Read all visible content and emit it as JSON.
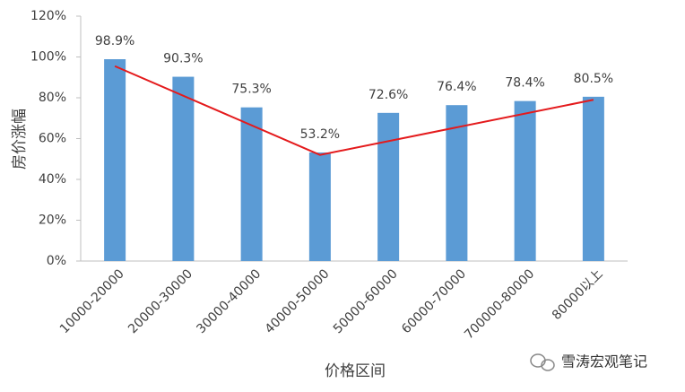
{
  "chart_data": {
    "type": "bar",
    "categories": [
      "10000-20000",
      "20000-30000",
      "30000-40000",
      "40000-50000",
      "50000-60000",
      "60000-70000",
      "700000-80000",
      "80000以上"
    ],
    "values": [
      98.9,
      90.3,
      75.3,
      53.2,
      72.6,
      76.4,
      78.4,
      80.5
    ],
    "value_labels": [
      "98.9%",
      "90.3%",
      "75.3%",
      "53.2%",
      "72.6%",
      "76.4%",
      "78.4%",
      "80.5%"
    ],
    "color": "#5b9bd5",
    "trend": {
      "color": "#e41a1c",
      "x": [
        "10000-20000",
        "40000-50000",
        "80000以上"
      ],
      "values": [
        95.5,
        52,
        79
      ]
    },
    "ylim": [
      0,
      120
    ],
    "yticks": [
      {
        "value": 0,
        "label": "0%"
      },
      {
        "value": 20,
        "label": "20%"
      },
      {
        "value": 40,
        "label": "40%"
      },
      {
        "value": 60,
        "label": "60%"
      },
      {
        "value": 80,
        "label": "80%"
      },
      {
        "value": 100,
        "label": "100%"
      },
      {
        "value": 120,
        "label": "120%"
      }
    ],
    "y_label": "房价涨幅",
    "x_label": "价格区间"
  },
  "watermark": "雪涛宏观笔记"
}
